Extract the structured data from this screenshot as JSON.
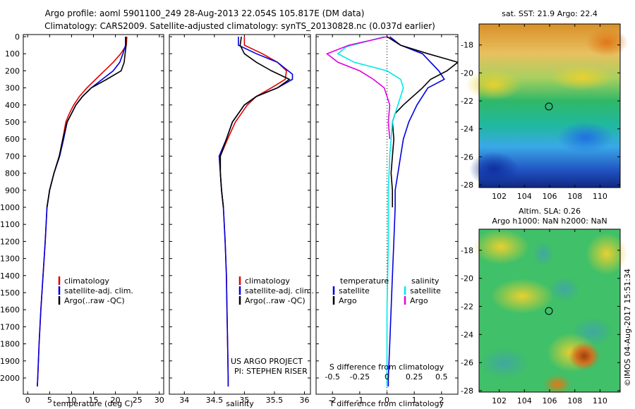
{
  "title": {
    "line1": "Argo profile: aoml 5901100_249 28-Aug-2013 22.054S 105.817E (DM data)",
    "line2": "Climatology: CARS2009. Satellite-adjusted climatology: synTS_20130828.nc (0.037d earlier)"
  },
  "depth_ticks": [
    "0",
    "100",
    "200",
    "300",
    "400",
    "500",
    "600",
    "700",
    "800",
    "900",
    "1000",
    "1100",
    "1200",
    "1300",
    "1400",
    "1500",
    "1600",
    "1700",
    "1800",
    "1900",
    "2000"
  ],
  "legend": {
    "climatology": "climatology",
    "satellite": "satellite-adj. clim.",
    "argo": "Argo(..raw -QC)",
    "temperature": "temperature",
    "salinity": "salinity",
    "sat_short": "satellite",
    "argo_short": "Argo"
  },
  "credits": {
    "line1": "US ARGO PROJECT",
    "line2": "PI: STEPHEN RISER"
  },
  "maps": {
    "sst_title": "sat. SST: 21.9 Argo: 22.4",
    "sla_title1": "Altim. SLA: 0.26",
    "sla_title2": "Argo h1000: NaN h2000: NaN",
    "lat_ticks": [
      "-18",
      "-20",
      "-22",
      "-24",
      "-26",
      "-28"
    ],
    "lon_ticks": [
      "102",
      "104",
      "106",
      "108",
      "110"
    ]
  },
  "stamp": "©IMOS 04-Aug-2017 15:51:34",
  "colors": {
    "climatology": "#e00000",
    "satellite": "#0000e0",
    "argo": "#000000",
    "salinity_sat": "#00e8e8",
    "salinity_argo": "#e000e0"
  },
  "chart_data": [
    {
      "type": "line",
      "id": "temperature",
      "xlabel": "temperature (deg C)",
      "ylabel": "",
      "xlim": [
        -1,
        31
      ],
      "ylim": [
        2050,
        0
      ],
      "xticks": [
        0,
        5,
        10,
        15,
        20,
        25,
        30
      ],
      "series": [
        {
          "name": "climatology",
          "color": "#e00000",
          "points": [
            [
              22.6,
              0
            ],
            [
              22.5,
              50
            ],
            [
              21.2,
              100
            ],
            [
              19.5,
              150
            ],
            [
              17.5,
              200
            ],
            [
              15.5,
              250
            ],
            [
              13.5,
              300
            ],
            [
              11.8,
              350
            ],
            [
              10.5,
              400
            ],
            [
              9.5,
              450
            ],
            [
              8.7,
              500
            ],
            [
              8.0,
              600
            ],
            [
              7.2,
              700
            ],
            [
              6.0,
              800
            ],
            [
              5.0,
              900
            ],
            [
              4.4,
              1000
            ],
            [
              4.0,
              1200
            ],
            [
              3.5,
              1400
            ],
            [
              3.0,
              1600
            ],
            [
              2.6,
              1800
            ],
            [
              2.3,
              2000
            ],
            [
              2.2,
              2050
            ]
          ]
        },
        {
          "name": "satellite-adj. clim.",
          "color": "#0000e0",
          "points": [
            [
              22.3,
              0
            ],
            [
              22.3,
              50
            ],
            [
              21.7,
              100
            ],
            [
              21.0,
              150
            ],
            [
              19.5,
              200
            ],
            [
              17.0,
              250
            ],
            [
              14.5,
              300
            ],
            [
              12.5,
              350
            ],
            [
              11.0,
              400
            ],
            [
              10.0,
              450
            ],
            [
              9.0,
              500
            ],
            [
              8.2,
              600
            ],
            [
              7.3,
              700
            ],
            [
              6.0,
              800
            ],
            [
              5.0,
              900
            ],
            [
              4.4,
              1000
            ],
            [
              4.0,
              1200
            ],
            [
              3.5,
              1400
            ],
            [
              3.0,
              1600
            ],
            [
              2.6,
              1800
            ],
            [
              2.3,
              2000
            ],
            [
              2.2,
              2050
            ]
          ]
        },
        {
          "name": "Argo(..raw -QC)",
          "color": "#000000",
          "points": [
            [
              22.4,
              0
            ],
            [
              22.4,
              60
            ],
            [
              22.2,
              100
            ],
            [
              22.0,
              150
            ],
            [
              21.3,
              200
            ],
            [
              18.0,
              250
            ],
            [
              14.5,
              300
            ],
            [
              12.5,
              350
            ],
            [
              11.0,
              400
            ],
            [
              10.0,
              450
            ],
            [
              9.0,
              500
            ],
            [
              8.0,
              600
            ],
            [
              7.2,
              700
            ],
            [
              6.0,
              800
            ],
            [
              5.0,
              900
            ],
            [
              4.4,
              1000
            ]
          ]
        }
      ]
    },
    {
      "type": "line",
      "id": "salinity",
      "xlabel": "salinity",
      "ylabel": "",
      "xlim": [
        33.75,
        36.1
      ],
      "ylim": [
        2050,
        0
      ],
      "xticks": [
        34,
        34.5,
        35,
        35.5,
        36
      ],
      "series": [
        {
          "name": "climatology",
          "color": "#e00000",
          "points": [
            [
              35.0,
              0
            ],
            [
              35.0,
              50
            ],
            [
              35.3,
              100
            ],
            [
              35.55,
              150
            ],
            [
              35.7,
              200
            ],
            [
              35.68,
              250
            ],
            [
              35.45,
              300
            ],
            [
              35.2,
              350
            ],
            [
              35.05,
              400
            ],
            [
              34.95,
              450
            ],
            [
              34.85,
              500
            ],
            [
              34.72,
              600
            ],
            [
              34.6,
              700
            ],
            [
              34.6,
              800
            ],
            [
              34.62,
              900
            ],
            [
              34.65,
              1000
            ],
            [
              34.68,
              1200
            ],
            [
              34.7,
              1400
            ],
            [
              34.71,
              1600
            ],
            [
              34.72,
              1800
            ],
            [
              34.73,
              2000
            ],
            [
              34.73,
              2050
            ]
          ]
        },
        {
          "name": "satellite-adj. clim.",
          "color": "#0000e0",
          "points": [
            [
              34.9,
              0
            ],
            [
              34.9,
              50
            ],
            [
              35.2,
              100
            ],
            [
              35.55,
              150
            ],
            [
              35.8,
              220
            ],
            [
              35.8,
              250
            ],
            [
              35.55,
              300
            ],
            [
              35.2,
              350
            ],
            [
              35.0,
              400
            ],
            [
              34.9,
              450
            ],
            [
              34.8,
              500
            ],
            [
              34.7,
              600
            ],
            [
              34.58,
              700
            ],
            [
              34.6,
              800
            ],
            [
              34.62,
              900
            ],
            [
              34.65,
              1000
            ],
            [
              34.68,
              1200
            ],
            [
              34.7,
              1400
            ],
            [
              34.71,
              1600
            ],
            [
              34.72,
              1800
            ],
            [
              34.73,
              2000
            ],
            [
              34.73,
              2050
            ]
          ]
        },
        {
          "name": "Argo(..raw -QC)",
          "color": "#000000",
          "points": [
            [
              34.95,
              0
            ],
            [
              34.93,
              50
            ],
            [
              35.0,
              100
            ],
            [
              35.2,
              150
            ],
            [
              35.45,
              200
            ],
            [
              35.75,
              250
            ],
            [
              35.55,
              300
            ],
            [
              35.2,
              350
            ],
            [
              35.0,
              400
            ],
            [
              34.9,
              450
            ],
            [
              34.8,
              500
            ],
            [
              34.7,
              600
            ],
            [
              34.6,
              700
            ],
            [
              34.6,
              800
            ],
            [
              34.62,
              900
            ],
            [
              34.65,
              1000
            ]
          ]
        }
      ]
    },
    {
      "type": "line",
      "id": "differences",
      "xlabel": "T difference from climatology",
      "xlabel_top": "S difference from climatology",
      "ylabel": "",
      "xlim": [
        -2.6,
        2.6
      ],
      "ylim": [
        2050,
        0
      ],
      "xticks": [
        -2,
        -1,
        0,
        1,
        2
      ],
      "xticks_top": [
        "-0.5",
        "-0.25",
        "0",
        "0.25",
        "0.5"
      ],
      "series": [
        {
          "name": "temperature satellite",
          "color": "#0000e0",
          "points": [
            [
              0.1,
              0
            ],
            [
              0.5,
              50
            ],
            [
              1.3,
              100
            ],
            [
              1.9,
              200
            ],
            [
              2.1,
              250
            ],
            [
              1.5,
              300
            ],
            [
              1.1,
              400
            ],
            [
              0.8,
              500
            ],
            [
              0.6,
              600
            ],
            [
              0.5,
              700
            ],
            [
              0.4,
              800
            ],
            [
              0.3,
              900
            ],
            [
              0.3,
              1000
            ],
            [
              0.25,
              1200
            ],
            [
              0.2,
              1400
            ],
            [
              0.15,
              1600
            ],
            [
              0.1,
              1800
            ],
            [
              0.05,
              2000
            ],
            [
              0.05,
              2050
            ]
          ]
        },
        {
          "name": "temperature Argo",
          "color": "#000000",
          "points": [
            [
              0.0,
              0
            ],
            [
              0.5,
              50
            ],
            [
              1.5,
              100
            ],
            [
              2.6,
              150
            ],
            [
              2.2,
              200
            ],
            [
              1.6,
              250
            ],
            [
              1.3,
              300
            ],
            [
              0.6,
              400
            ],
            [
              0.3,
              450
            ],
            [
              0.2,
              500
            ],
            [
              0.25,
              600
            ],
            [
              0.2,
              700
            ],
            [
              0.15,
              800
            ],
            [
              0.2,
              900
            ],
            [
              0.2,
              1000
            ]
          ]
        },
        {
          "name": "salinity satellite",
          "color": "#00e8e8",
          "points": [
            [
              -0.1,
              0
            ],
            [
              -1.5,
              60
            ],
            [
              -1.8,
              100
            ],
            [
              -1.2,
              150
            ],
            [
              0.0,
              200
            ],
            [
              0.5,
              250
            ],
            [
              0.6,
              300
            ],
            [
              0.4,
              400
            ],
            [
              0.2,
              500
            ],
            [
              0.1,
              700
            ],
            [
              0.05,
              900
            ],
            [
              0.05,
              1200
            ],
            [
              0.0,
              1600
            ],
            [
              0.0,
              2050
            ]
          ]
        },
        {
          "name": "salinity Argo",
          "color": "#e000e0",
          "points": [
            [
              0.0,
              0
            ],
            [
              -1.4,
              50
            ],
            [
              -2.2,
              100
            ],
            [
              -1.8,
              150
            ],
            [
              -1.0,
              200
            ],
            [
              -0.5,
              250
            ],
            [
              -0.1,
              300
            ],
            [
              0.1,
              400
            ],
            [
              0.05,
              500
            ],
            [
              0.1,
              600
            ]
          ]
        }
      ]
    }
  ]
}
